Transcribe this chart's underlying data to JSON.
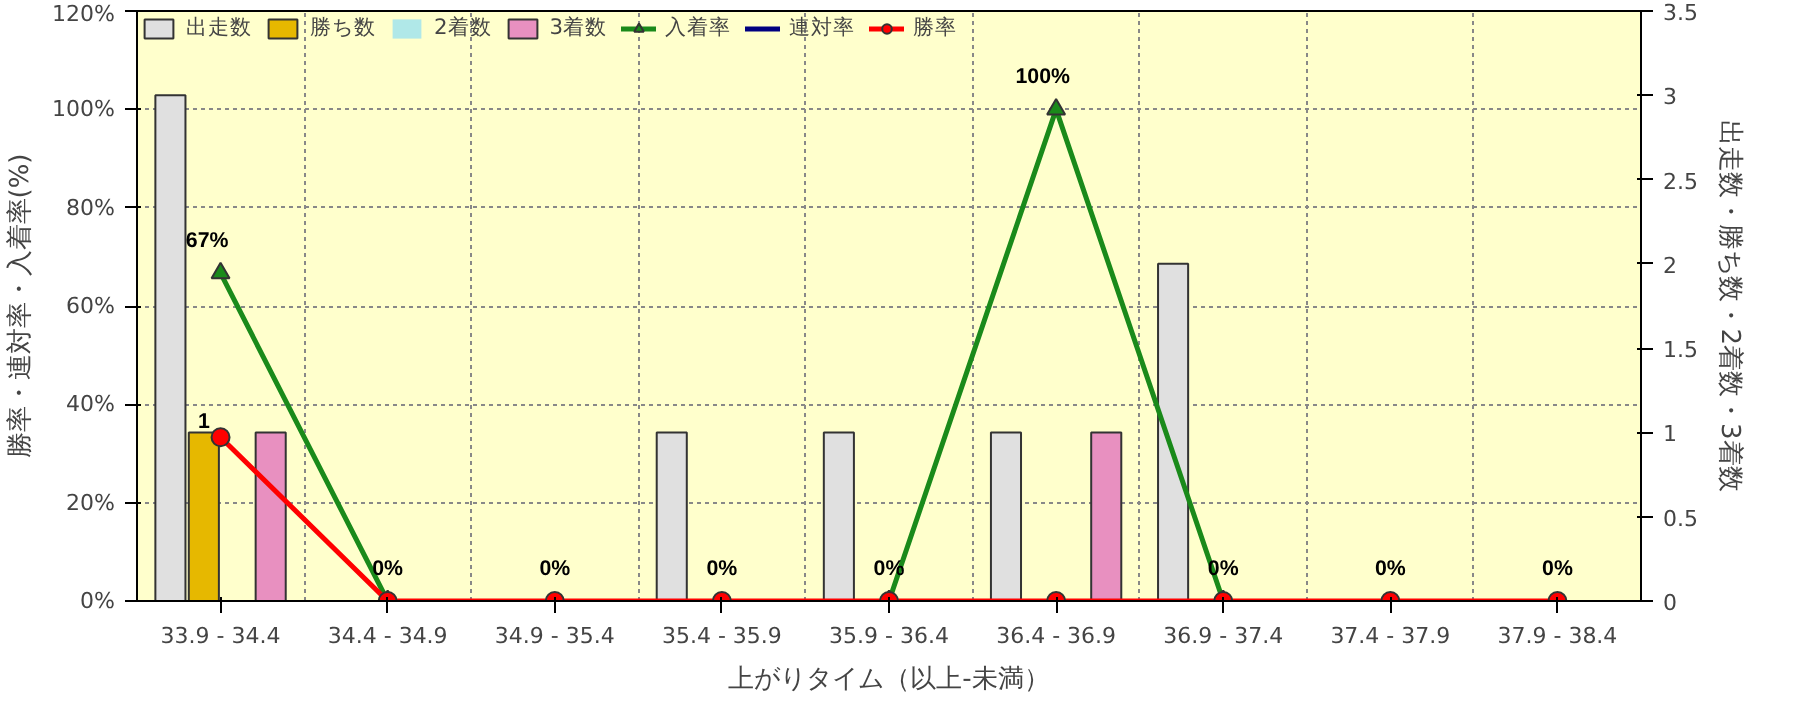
{
  "chart_data": {
    "type": "bar",
    "xlabel": "上がりタイム（以上-未満）",
    "ylabel": "勝率・連対率・入着率(%)",
    "y2label": "出走数・勝ち数・2着数・3着数",
    "categories": [
      "33.9 - 34.4",
      "34.4 - 34.9",
      "34.9 - 35.4",
      "35.4 - 35.9",
      "35.9 - 36.4",
      "36.4 - 36.9",
      "36.9 - 37.4",
      "37.4 - 37.9",
      "37.9 - 38.4"
    ],
    "series": [
      {
        "name": "出走数",
        "axis": "y2",
        "color": "#e0e0e0",
        "values": [
          3,
          0,
          0,
          1,
          1,
          1,
          2,
          0,
          0
        ]
      },
      {
        "name": "勝ち数",
        "axis": "y2",
        "color": "#e6b800",
        "values": [
          1,
          0,
          0,
          0,
          0,
          0,
          0,
          0,
          0
        ],
        "value_labels": [
          "1",
          null,
          null,
          null,
          null,
          null,
          null,
          null,
          null
        ]
      },
      {
        "name": "2着数",
        "axis": "y2",
        "color": "#b0e8e8",
        "values": [
          0,
          0,
          0,
          0,
          0,
          0,
          0,
          0,
          0
        ]
      },
      {
        "name": "3着数",
        "axis": "y2",
        "color": "#e890c0",
        "values": [
          1,
          0,
          0,
          0,
          0,
          1,
          0,
          0,
          0
        ]
      },
      {
        "name": "入着率",
        "type": "line",
        "marker": "triangle",
        "color": "#1a8a1a",
        "values": [
          66.7,
          0,
          null,
          null,
          0,
          100,
          0,
          null,
          null
        ],
        "value_labels": [
          "67%",
          "0%",
          null,
          null,
          "0%",
          "100%",
          "0%",
          null,
          null
        ]
      },
      {
        "name": "連対率",
        "type": "line",
        "marker": "diamond",
        "color": "#000080",
        "values": [
          null,
          null,
          null,
          null,
          null,
          null,
          null,
          null,
          null
        ]
      },
      {
        "name": "勝率",
        "type": "line",
        "marker": "circle",
        "color": "#ff0000",
        "values": [
          33.3,
          0,
          0,
          0,
          0,
          0,
          0,
          0,
          0
        ],
        "value_labels": [
          null,
          null,
          "0%",
          "0%",
          null,
          null,
          null,
          "0%",
          "0%"
        ]
      }
    ],
    "ylim": [
      0,
      120
    ],
    "yticks": [
      {
        "value": 0,
        "label": "0%"
      },
      {
        "value": 20,
        "label": "20%"
      },
      {
        "value": 40,
        "label": "40%"
      },
      {
        "value": 60,
        "label": "60%"
      },
      {
        "value": 80,
        "label": "80%"
      },
      {
        "value": 100,
        "label": "100%"
      },
      {
        "value": 120,
        "label": "120%"
      }
    ],
    "y2lim": [
      0,
      3.5
    ],
    "y2ticks": [
      0,
      0.5,
      1,
      1.5,
      2,
      2.5,
      3,
      3.5
    ],
    "grid": true,
    "legend": "top"
  }
}
